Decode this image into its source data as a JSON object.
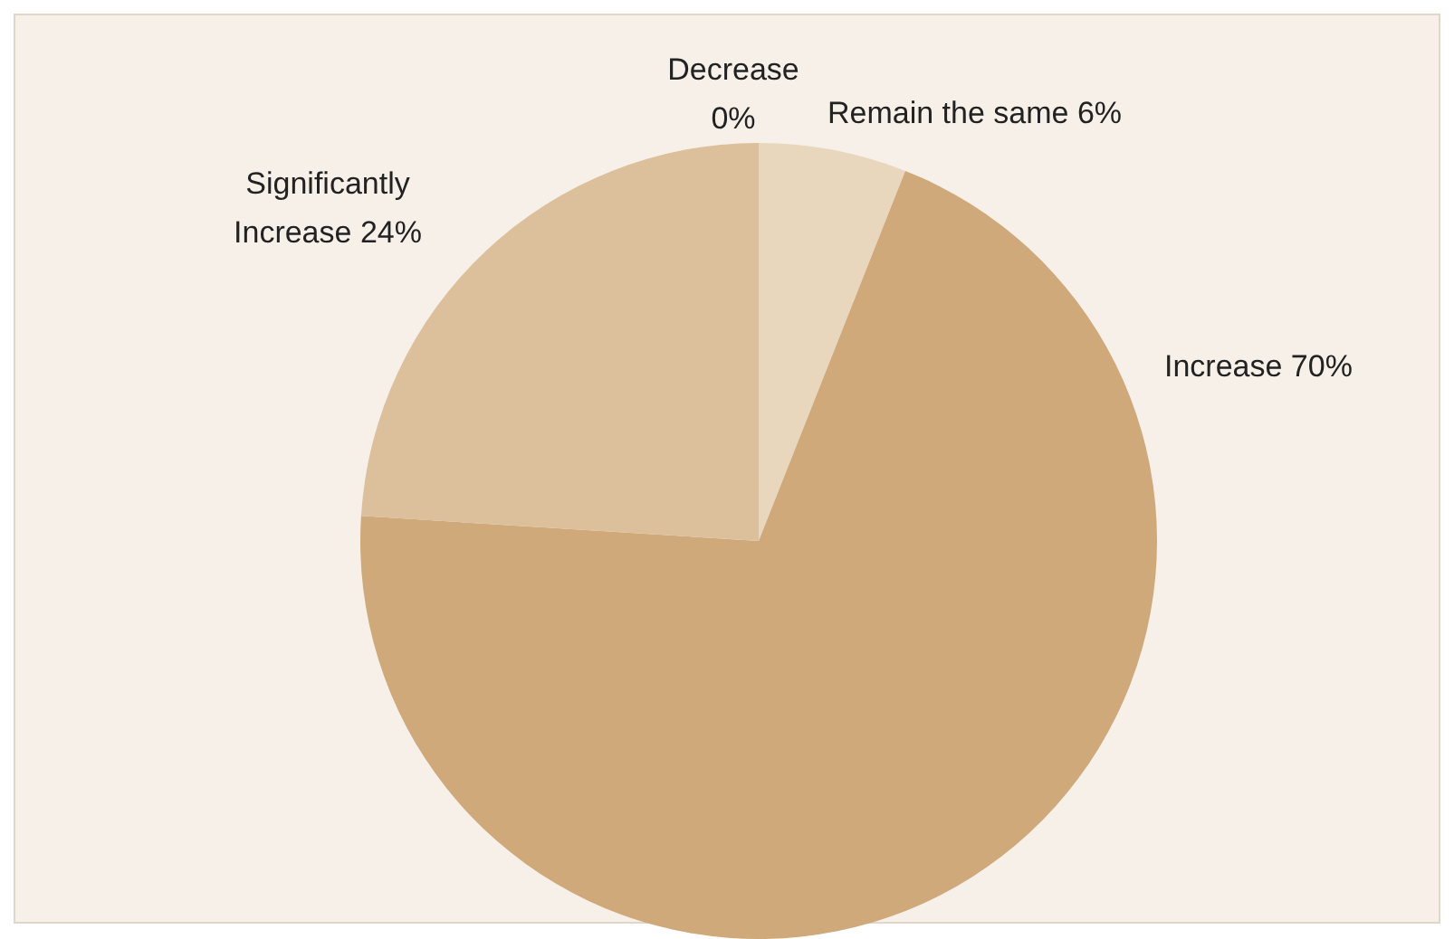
{
  "chart_data": {
    "type": "pie",
    "categories": [
      "Decrease",
      "Remain the same",
      "Increase",
      "Significantly Increase"
    ],
    "values": [
      0,
      6,
      70,
      24
    ],
    "colors": [
      "#b88a55",
      "#e8d7bd",
      "#cfa97a",
      "#dcbf9b"
    ],
    "value_labels": [
      "0%",
      "6%",
      "70%",
      "24%"
    ]
  }
}
